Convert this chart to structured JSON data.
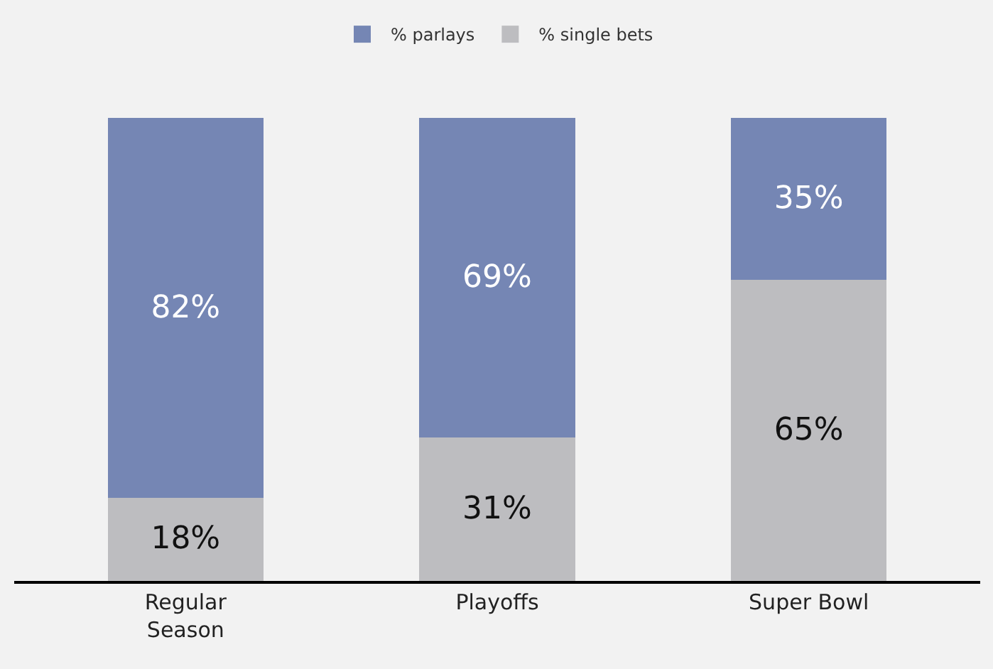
{
  "chart_data": {
    "type": "bar",
    "stacked": true,
    "legend": "top",
    "categories": [
      "Regular Season",
      "Playoffs",
      "Super Bowl"
    ],
    "series": [
      {
        "name": "% single bets",
        "color": "#bdbdc0",
        "values": [
          18,
          31,
          65
        ],
        "value_labels": [
          "18%",
          "31%",
          "65%"
        ]
      },
      {
        "name": "% parlays",
        "color": "#7586b4",
        "values": [
          82,
          69,
          35
        ],
        "value_labels": [
          "82%",
          "69%",
          "35%"
        ]
      }
    ]
  }
}
